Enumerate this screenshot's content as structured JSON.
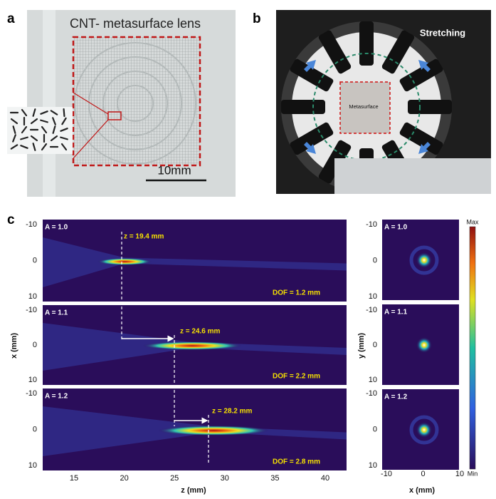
{
  "panel_a": {
    "label": "a",
    "title": "CNT- metasurface lens",
    "scale_bar": "10mm"
  },
  "panel_b": {
    "label": "b",
    "annotation": "Stretching",
    "region": "Metasurface"
  },
  "panel_c": {
    "label": "c",
    "rows": [
      {
        "strain": "A = 1.0",
        "focus": "z = 19.4 mm",
        "dof": "DOF = 1.2 mm"
      },
      {
        "strain": "A = 1.1",
        "focus": "z = 24.6 mm",
        "dof": "DOF = 2.2 mm"
      },
      {
        "strain": "A = 1.2",
        "focus": "z = 28.2 mm",
        "dof": "DOF = 2.8 mm"
      }
    ],
    "z_axis_label": "z (mm)",
    "x_axis_label": "x (mm)",
    "side_y_axis_label": "y (mm)",
    "side_x_axis_label": "x (mm)",
    "z_ticks": [
      15,
      20,
      25,
      30,
      35,
      40
    ],
    "position_ticks": [
      -10,
      0,
      10
    ],
    "colorbar_max": "Max",
    "colorbar_min": "Min"
  }
}
